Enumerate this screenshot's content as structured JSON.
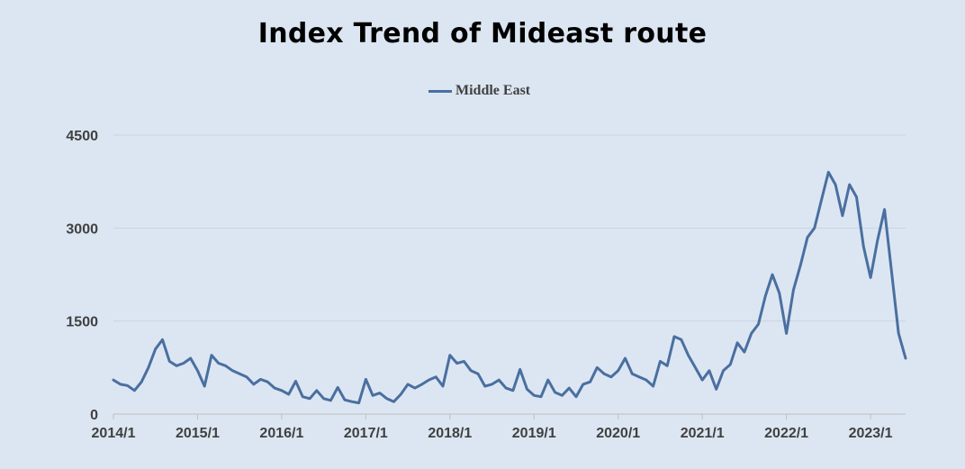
{
  "chart_data": {
    "type": "line",
    "title": "Index Trend of Mideast route",
    "xlabel": "",
    "ylabel": "",
    "ylim": [
      0,
      4500
    ],
    "yticks": [
      0,
      1500,
      3000,
      4500
    ],
    "xticks": [
      "2014/1",
      "2015/1",
      "2016/1",
      "2017/1",
      "2018/1",
      "2019/1",
      "2020/1",
      "2021/1",
      "2022/1",
      "2023/1"
    ],
    "xlim": [
      "2014-01",
      "2023-06"
    ],
    "grid": true,
    "legend_position": "top-center",
    "series": [
      {
        "name": "Middle East",
        "color": "#4a6fa0",
        "points": [
          [
            "2014-01",
            550
          ],
          [
            "2014-02",
            480
          ],
          [
            "2014-03",
            460
          ],
          [
            "2014-04",
            380
          ],
          [
            "2014-05",
            520
          ],
          [
            "2014-06",
            750
          ],
          [
            "2014-07",
            1050
          ],
          [
            "2014-08",
            1200
          ],
          [
            "2014-09",
            850
          ],
          [
            "2014-10",
            780
          ],
          [
            "2014-11",
            820
          ],
          [
            "2014-12",
            900
          ],
          [
            "2015-01",
            700
          ],
          [
            "2015-02",
            450
          ],
          [
            "2015-03",
            950
          ],
          [
            "2015-04",
            820
          ],
          [
            "2015-05",
            780
          ],
          [
            "2015-06",
            700
          ],
          [
            "2015-07",
            650
          ],
          [
            "2015-08",
            600
          ],
          [
            "2015-09",
            480
          ],
          [
            "2015-10",
            560
          ],
          [
            "2015-11",
            520
          ],
          [
            "2015-12",
            420
          ],
          [
            "2016-01",
            380
          ],
          [
            "2016-02",
            320
          ],
          [
            "2016-03",
            530
          ],
          [
            "2016-04",
            280
          ],
          [
            "2016-05",
            250
          ],
          [
            "2016-06",
            380
          ],
          [
            "2016-07",
            250
          ],
          [
            "2016-08",
            220
          ],
          [
            "2016-09",
            430
          ],
          [
            "2016-10",
            230
          ],
          [
            "2016-11",
            200
          ],
          [
            "2016-12",
            180
          ],
          [
            "2017-01",
            560
          ],
          [
            "2017-02",
            300
          ],
          [
            "2017-03",
            340
          ],
          [
            "2017-04",
            250
          ],
          [
            "2017-05",
            200
          ],
          [
            "2017-06",
            320
          ],
          [
            "2017-07",
            480
          ],
          [
            "2017-08",
            420
          ],
          [
            "2017-09",
            480
          ],
          [
            "2017-10",
            550
          ],
          [
            "2017-11",
            600
          ],
          [
            "2017-12",
            450
          ],
          [
            "2018-01",
            950
          ],
          [
            "2018-02",
            820
          ],
          [
            "2018-03",
            850
          ],
          [
            "2018-04",
            700
          ],
          [
            "2018-05",
            650
          ],
          [
            "2018-06",
            450
          ],
          [
            "2018-07",
            480
          ],
          [
            "2018-08",
            550
          ],
          [
            "2018-09",
            420
          ],
          [
            "2018-10",
            380
          ],
          [
            "2018-11",
            720
          ],
          [
            "2018-12",
            400
          ],
          [
            "2019-01",
            300
          ],
          [
            "2019-02",
            280
          ],
          [
            "2019-03",
            550
          ],
          [
            "2019-04",
            350
          ],
          [
            "2019-05",
            300
          ],
          [
            "2019-06",
            420
          ],
          [
            "2019-07",
            280
          ],
          [
            "2019-08",
            480
          ],
          [
            "2019-09",
            520
          ],
          [
            "2019-10",
            750
          ],
          [
            "2019-11",
            650
          ],
          [
            "2019-12",
            600
          ],
          [
            "2020-01",
            700
          ],
          [
            "2020-02",
            900
          ],
          [
            "2020-03",
            650
          ],
          [
            "2020-04",
            600
          ],
          [
            "2020-05",
            550
          ],
          [
            "2020-06",
            450
          ],
          [
            "2020-07",
            850
          ],
          [
            "2020-08",
            780
          ],
          [
            "2020-09",
            1250
          ],
          [
            "2020-10",
            1200
          ],
          [
            "2020-11",
            950
          ],
          [
            "2020-12",
            750
          ],
          [
            "2021-01",
            550
          ],
          [
            "2021-02",
            700
          ],
          [
            "2021-03",
            400
          ],
          [
            "2021-04",
            700
          ],
          [
            "2021-05",
            800
          ],
          [
            "2021-06",
            1150
          ],
          [
            "2021-07",
            1000
          ],
          [
            "2021-08",
            1300
          ],
          [
            "2021-09",
            1450
          ],
          [
            "2021-10",
            1900
          ],
          [
            "2021-11",
            2250
          ],
          [
            "2021-12",
            1950
          ],
          [
            "2022-01",
            1300
          ],
          [
            "2022-02",
            2000
          ],
          [
            "2022-03",
            2400
          ],
          [
            "2022-04",
            2850
          ],
          [
            "2022-05",
            3000
          ],
          [
            "2022-06",
            3450
          ],
          [
            "2022-07",
            3900
          ],
          [
            "2022-08",
            3700
          ],
          [
            "2022-09",
            3200
          ],
          [
            "2022-10",
            3700
          ],
          [
            "2022-11",
            3500
          ],
          [
            "2022-12",
            2700
          ],
          [
            "2023-01",
            2200
          ],
          [
            "2023-02",
            2800
          ],
          [
            "2023-03",
            3300
          ],
          [
            "2023-04",
            2300
          ],
          [
            "2023-05",
            1300
          ],
          [
            "2023-06",
            900
          ]
        ]
      }
    ]
  }
}
